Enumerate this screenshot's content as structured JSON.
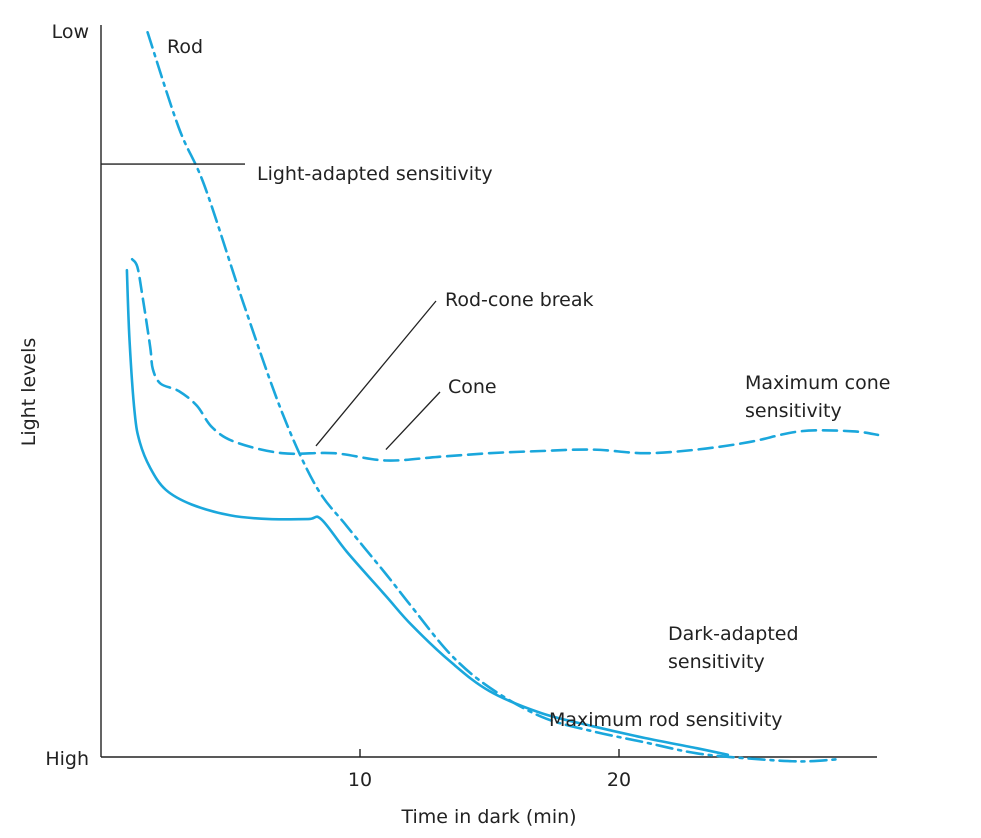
{
  "colors": {
    "curve": "#1aa7dc",
    "axis": "#222222",
    "text": "#222222",
    "background": "#ffffff"
  },
  "chart_data": {
    "type": "line",
    "title": "",
    "xlabel": "Time in dark (min)",
    "ylabel": "Light levels",
    "xlim": [
      0,
      30
    ],
    "ylim": [
      0,
      100
    ],
    "x_ticks": [
      10,
      20
    ],
    "x_tick_labels": [
      "10",
      "20"
    ],
    "y_tick_labels": {
      "top": "Low",
      "bottom": "High"
    },
    "y_scale_note": "threshold axis: top = Low light level, bottom = High light level",
    "grid": false,
    "legend": "none",
    "series": [
      {
        "name": "Rod",
        "style": "dash-dot",
        "x": [
          1.8,
          3.0,
          4.0,
          5.5,
          7.0,
          8.3,
          9.5,
          11.0,
          12.0,
          13.5,
          15.0,
          17.0,
          19.0,
          21.0,
          23.0,
          25.0,
          27.0,
          28.5
        ],
        "y": [
          99,
          86,
          78,
          62,
          47,
          37,
          31.5,
          25,
          20.5,
          14,
          9.5,
          5.5,
          3.5,
          2.0,
          0.5,
          -0.2,
          -0.6,
          -0.3
        ]
      },
      {
        "x": [
          1.0,
          1.1,
          1.3,
          1.5,
          1.9,
          2.5,
          3.5,
          5.0,
          6.5,
          8.0,
          8.5,
          9.5,
          11.0,
          12.0,
          13.5,
          15.0,
          17.0,
          19.0,
          21.0,
          23.0,
          24.2
        ],
        "y": [
          66.5,
          57,
          47,
          43,
          39.5,
          36.5,
          34.5,
          33,
          32.5,
          32.5,
          32.5,
          28,
          22,
          18,
          13,
          9,
          6,
          4.2,
          2.6,
          1.2,
          0.3
        ]
      },
      {
        "name": "Cone",
        "style": "dashed",
        "x": [
          1.2,
          1.4,
          1.6,
          1.9,
          2.0,
          2.3,
          3.0,
          3.7,
          4.3,
          5.2,
          7.0,
          9.0,
          11.0,
          13.0,
          15.0,
          17.0,
          19.0,
          21.0,
          23.0,
          25.0,
          27.0,
          29.0,
          30.0
        ],
        "y": [
          68,
          67,
          63,
          56,
          53,
          51,
          50,
          48,
          45,
          43,
          41.5,
          41.5,
          40.5,
          41,
          41.5,
          41.8,
          42,
          41.5,
          42,
          43,
          44.5,
          44.5,
          44
        ]
      }
    ],
    "annotations": [
      {
        "text": "Rod"
      },
      {
        "text": "Light-adapted sensitivity",
        "y": 81
      },
      {
        "text": "Rod-cone break",
        "x": 8.3,
        "y": 42.5
      },
      {
        "text": "Cone",
        "x": 11.0,
        "y": 42
      },
      {
        "text": "Maximum cone"
      },
      {
        "text": "sensitivity"
      },
      {
        "text": "Dark-adapted"
      },
      {
        "text": "sensitivity"
      },
      {
        "text": "Maximum rod sensitivity"
      }
    ]
  }
}
